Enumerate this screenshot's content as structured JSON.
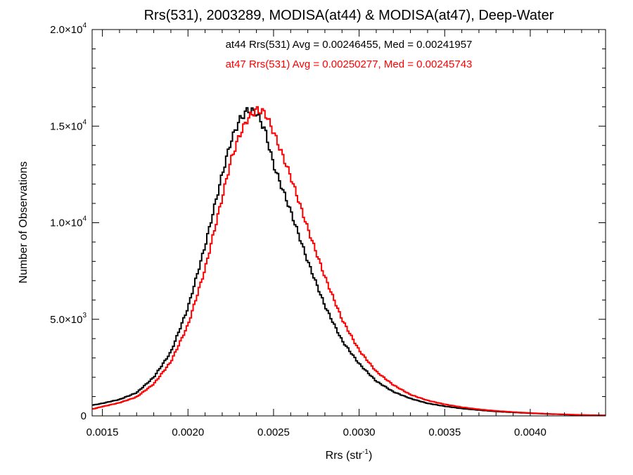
{
  "chart_data": {
    "type": "line",
    "title": "Rrs(531), 2003289, MODISA(at44) & MODISA(at47), Deep-Water",
    "annotations": [
      {
        "text": "at44 Rrs(531) Avg = 0.00246455, Med = 0.00241957",
        "color": "#000000"
      },
      {
        "text": "at47 Rrs(531) Avg = 0.00250277, Med = 0.00245743",
        "color": "#ff0000"
      }
    ],
    "xlabel": {
      "base": "Rrs (str",
      "sup": "-1",
      "end": ")"
    },
    "ylabel": "Number of Observations",
    "xlim": [
      0.00144,
      0.00444
    ],
    "ylim": [
      0,
      20000
    ],
    "x_ticks": [
      {
        "value": 0.0015,
        "label": "0.0015"
      },
      {
        "value": 0.002,
        "label": "0.0020"
      },
      {
        "value": 0.0025,
        "label": "0.0025"
      },
      {
        "value": 0.003,
        "label": "0.0030"
      },
      {
        "value": 0.0035,
        "label": "0.0035"
      },
      {
        "value": 0.004,
        "label": "0.0040"
      }
    ],
    "y_ticks": [
      {
        "value": 0,
        "mant": "0",
        "exp": ""
      },
      {
        "value": 5000,
        "mant": "5.0×10",
        "exp": "3"
      },
      {
        "value": 10000,
        "mant": "1.0×10",
        "exp": "4"
      },
      {
        "value": 15000,
        "mant": "1.5×10",
        "exp": "4"
      },
      {
        "value": 20000,
        "mant": "2.0×10",
        "exp": "4"
      }
    ],
    "grid": false,
    "step": true,
    "series": [
      {
        "color": "#000000",
        "x": [
          0.00144,
          0.0015,
          0.0016,
          0.0017,
          0.0018,
          0.0019,
          0.002,
          0.0021,
          0.0022,
          0.00225,
          0.0023,
          0.00235,
          0.0024,
          0.00245,
          0.0025,
          0.0026,
          0.0027,
          0.0028,
          0.0029,
          0.003,
          0.0031,
          0.0032,
          0.0033,
          0.0034,
          0.0035,
          0.0036,
          0.0037,
          0.0038,
          0.0039,
          0.004,
          0.0041,
          0.0042,
          0.0043,
          0.00444
        ],
        "y": [
          550,
          650,
          850,
          1200,
          2000,
          3300,
          5600,
          8800,
          12500,
          14200,
          15300,
          15850,
          15700,
          14800,
          13000,
          10600,
          8000,
          5700,
          3900,
          2700,
          1800,
          1250,
          900,
          650,
          500,
          380,
          300,
          230,
          180,
          140,
          100,
          70,
          40,
          20
        ]
      },
      {
        "color": "#ff0000",
        "x": [
          0.00144,
          0.0015,
          0.0016,
          0.0017,
          0.0018,
          0.0019,
          0.002,
          0.0021,
          0.0022,
          0.00225,
          0.0023,
          0.00235,
          0.0024,
          0.00245,
          0.0025,
          0.0026,
          0.0027,
          0.0028,
          0.0029,
          0.003,
          0.0031,
          0.0032,
          0.0033,
          0.0034,
          0.0035,
          0.0036,
          0.0037,
          0.0038,
          0.0039,
          0.004,
          0.0041,
          0.0042,
          0.0043,
          0.00444
        ],
        "y": [
          350,
          480,
          680,
          980,
          1650,
          2800,
          4700,
          7600,
          11300,
          13200,
          14500,
          15400,
          15850,
          15700,
          14700,
          12400,
          9700,
          7200,
          5000,
          3400,
          2300,
          1600,
          1100,
          800,
          600,
          450,
          340,
          260,
          200,
          150,
          110,
          80,
          50,
          30
        ]
      }
    ]
  }
}
